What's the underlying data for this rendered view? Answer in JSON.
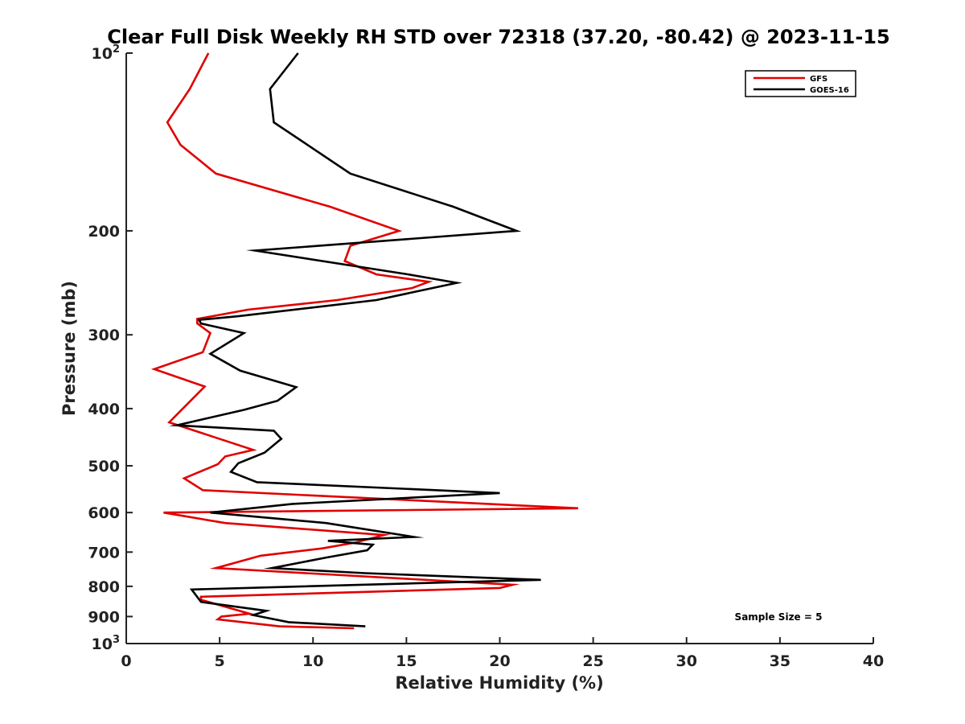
{
  "chart_data": {
    "type": "line",
    "title": "Clear Full Disk Weekly RH STD over 72318 (37.20, -80.42) @ 2023-11-15",
    "xlabel": "Relative Humidity (%)",
    "ylabel": "Pressure (mb)",
    "xlim": [
      0,
      40
    ],
    "ylim": [
      100,
      1000
    ],
    "y_scale": "log",
    "y_reversed": true,
    "grid": false,
    "legend_position": "top-right",
    "x_ticks": [
      "0",
      "5",
      "10",
      "15",
      "20",
      "25",
      "30",
      "35",
      "40"
    ],
    "y_ticks": [
      {
        "value": 100,
        "label": "10",
        "sup": "2"
      },
      {
        "value": 200,
        "label": "200",
        "sup": ""
      },
      {
        "value": 300,
        "label": "300",
        "sup": ""
      },
      {
        "value": 400,
        "label": "400",
        "sup": ""
      },
      {
        "value": 500,
        "label": "500",
        "sup": ""
      },
      {
        "value": 600,
        "label": "600",
        "sup": ""
      },
      {
        "value": 700,
        "label": "700",
        "sup": ""
      },
      {
        "value": 800,
        "label": "800",
        "sup": ""
      },
      {
        "value": 900,
        "label": "900",
        "sup": ""
      },
      {
        "value": 1000,
        "label": "10",
        "sup": "3"
      }
    ],
    "annotation": "Sample Size = 5",
    "series": [
      {
        "name": "GFS",
        "color": "#e00000",
        "x": [
          4.4,
          3.4,
          2.2,
          2.9,
          4.8,
          10.9,
          14.6,
          12.0,
          11.7,
          13.4,
          16.2,
          15.3,
          11.3,
          6.5,
          3.8,
          3.8,
          4.5,
          4.1,
          1.5,
          4.2,
          3.2,
          2.3,
          6.8,
          5.3,
          4.9,
          3.1,
          4.1,
          24.2,
          2.0,
          5.3,
          13.8,
          12.2,
          10.5,
          7.2,
          4.8,
          20.7,
          20.0,
          4.0,
          4.0,
          6.6,
          5.1,
          4.9,
          8.2,
          12.2
        ],
        "y": [
          100,
          115,
          131,
          143,
          160,
          182,
          200,
          212,
          225,
          237,
          244,
          250,
          262,
          272,
          282,
          287,
          298,
          321,
          343,
          367,
          395,
          422,
          470,
          482,
          497,
          525,
          550,
          590,
          600,
          625,
          655,
          675,
          690,
          710,
          745,
          795,
          805,
          833,
          843,
          890,
          900,
          910,
          935,
          942
        ]
      },
      {
        "name": "GOES-16",
        "color": "#000000",
        "x": [
          9.2,
          7.7,
          7.9,
          12.0,
          17.5,
          20.9,
          6.9,
          15.1,
          17.7,
          13.4,
          6.0,
          3.9,
          4.0,
          6.3,
          4.5,
          6.1,
          9.1,
          8.1,
          6.3,
          2.7,
          7.9,
          8.3,
          7.4,
          6.0,
          5.6,
          7.0,
          20.0,
          8.9,
          4.5,
          10.7,
          15.4,
          10.8,
          13.2,
          12.9,
          10.7,
          7.8,
          12.8,
          22.2,
          3.5,
          4.0,
          7.5,
          6.8,
          8.7,
          12.8
        ],
        "y": [
          100,
          115,
          131,
          160,
          182,
          200,
          216,
          237,
          245,
          262,
          279,
          283,
          287,
          298,
          323,
          345,
          368,
          388,
          402,
          427,
          436,
          450,
          475,
          495,
          512,
          533,
          556,
          580,
          600,
          625,
          660,
          670,
          680,
          695,
          715,
          745,
          760,
          780,
          810,
          850,
          880,
          895,
          920,
          935
        ]
      }
    ]
  }
}
